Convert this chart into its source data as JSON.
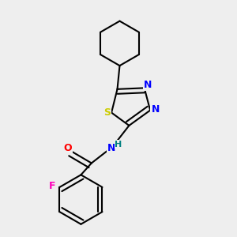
{
  "bg_color": "#eeeeee",
  "bond_color": "#000000",
  "atom_colors": {
    "S": "#cccc00",
    "N": "#0000ff",
    "O": "#ff0000",
    "F": "#ff00bb",
    "H": "#008080",
    "C": "#000000"
  },
  "bond_width": 1.5,
  "figsize": [
    3.0,
    3.0
  ],
  "dpi": 100,
  "xlim": [
    0.0,
    1.0
  ],
  "ylim": [
    0.0,
    1.0
  ]
}
